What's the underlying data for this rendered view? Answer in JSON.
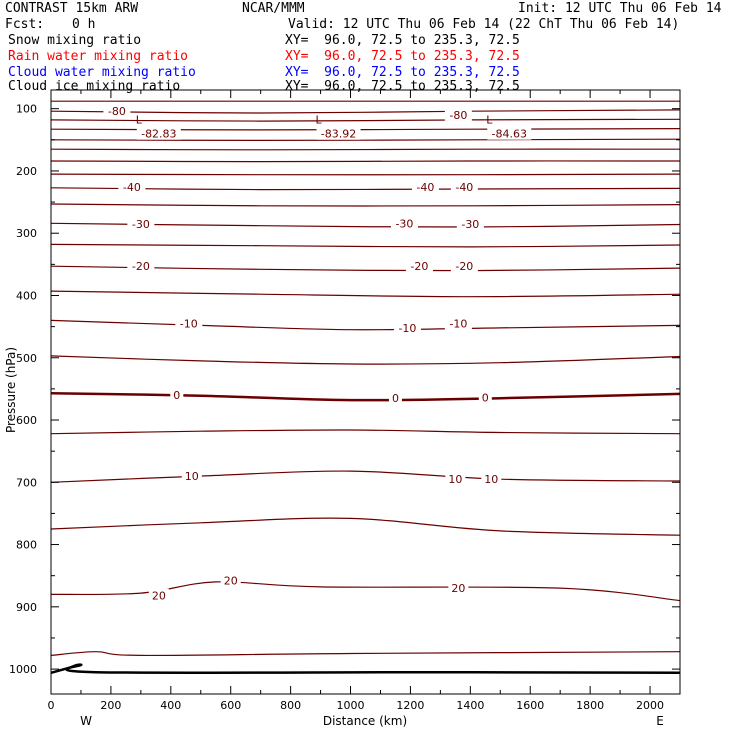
{
  "header": {
    "title": "CONTRAST 15km ARW",
    "center": "NCAR/MMM",
    "init": "Init: 12 UTC Thu 06 Feb 14",
    "fcst_label": "Fcst:",
    "fcst_value": "0 h",
    "valid": "Valid: 12 UTC Thu 06 Feb 14 (22 ChT Thu 06 Feb 14)"
  },
  "fields": [
    {
      "name": "Snow mixing ratio",
      "xy": "XY=  96.0, 72.5 to 235.3, 72.5",
      "color": "#000000"
    },
    {
      "name": "Rain water mixing ratio",
      "xy": "XY=  96.0, 72.5 to 235.3, 72.5",
      "color": "#ff0000"
    },
    {
      "name": "Cloud water mixing ratio",
      "xy": "XY=  96.0, 72.5 to 235.3, 72.5",
      "color": "#0000ff"
    },
    {
      "name": "Cloud ice mixing ratio",
      "xy": "XY=  96.0, 72.5 to 235.3, 72.5",
      "color": "#000000"
    }
  ],
  "chart_data": {
    "type": "line",
    "xlabel": "Distance (km)",
    "ylabel": "Pressure (hPa)",
    "xlim": [
      0,
      2100
    ],
    "ylim": [
      1040,
      70
    ],
    "x_ticks": [
      0,
      200,
      400,
      600,
      800,
      1000,
      1200,
      1400,
      1600,
      1800,
      2000
    ],
    "y_ticks": [
      100,
      200,
      300,
      400,
      500,
      600,
      700,
      800,
      900,
      1000
    ],
    "direction_left": "W",
    "direction_right": "E",
    "contour_color": "#6b0000",
    "isotherms": [
      {
        "p": [
          88,
          88
        ],
        "x": [
          0,
          2100
        ]
      },
      {
        "p": [
          104,
          107,
          104,
          102
        ],
        "x": [
          0,
          700,
          1400,
          2100
        ]
      },
      {
        "p": [
          118,
          120,
          118,
          117
        ],
        "x": [
          0,
          700,
          1400,
          2100
        ]
      },
      {
        "p": [
          133,
          134,
          133,
          132
        ],
        "x": [
          0,
          700,
          1400,
          2100
        ]
      },
      {
        "p": [
          150,
          151,
          150,
          149
        ],
        "x": [
          0,
          700,
          1400,
          2100
        ]
      },
      {
        "p": [
          165,
          166,
          165,
          165
        ],
        "x": [
          0,
          700,
          1400,
          2100
        ]
      },
      {
        "p": [
          184,
          185,
          184,
          184
        ],
        "x": [
          0,
          700,
          1400,
          2100
        ]
      },
      {
        "p": [
          205,
          206,
          206,
          205
        ],
        "x": [
          0,
          700,
          1400,
          2100
        ]
      },
      {
        "p": [
          227,
          230,
          229,
          228
        ],
        "x": [
          0,
          700,
          1400,
          2100
        ]
      },
      {
        "p": [
          253,
          256,
          256,
          254
        ],
        "x": [
          0,
          700,
          1400,
          2100
        ]
      },
      {
        "p": [
          284,
          288,
          290,
          286
        ],
        "x": [
          0,
          700,
          1400,
          2100
        ]
      },
      {
        "p": [
          318,
          320,
          322,
          319
        ],
        "x": [
          0,
          700,
          1400,
          2100
        ]
      },
      {
        "p": [
          353,
          358,
          360,
          356
        ],
        "x": [
          0,
          700,
          1400,
          2100
        ]
      },
      {
        "p": [
          393,
          398,
          402,
          398
        ],
        "x": [
          0,
          700,
          1400,
          2100
        ]
      },
      {
        "p": [
          440,
          448,
          455,
          452,
          448
        ],
        "x": [
          0,
          500,
          1000,
          1500,
          2100
        ]
      },
      {
        "p": [
          497,
          505,
          510,
          508,
          498
        ],
        "x": [
          0,
          500,
          1000,
          1500,
          2100
        ]
      },
      {
        "p": [
          557,
          561,
          568,
          565,
          558
        ],
        "x": [
          0,
          500,
          1000,
          1500,
          2100
        ]
      },
      {
        "p": [
          622,
          618,
          616,
          620,
          622
        ],
        "x": [
          0,
          500,
          1000,
          1500,
          2100
        ]
      },
      {
        "p": [
          700,
          690,
          682,
          695,
          698
        ],
        "x": [
          0,
          500,
          1000,
          1500,
          2100
        ]
      },
      {
        "p": [
          775,
          765,
          758,
          778,
          785
        ],
        "x": [
          0,
          500,
          1000,
          1500,
          2100
        ]
      },
      {
        "p": [
          880,
          878,
          860,
          868,
          870,
          890
        ],
        "x": [
          0,
          300,
          550,
          900,
          1700,
          2100
        ]
      },
      {
        "p": [
          978,
          972,
          978,
          975,
          972
        ],
        "x": [
          0,
          150,
          300,
          1000,
          2100
        ]
      }
    ],
    "zero_isotherm_index": 16,
    "ground": {
      "x": [
        0,
        60,
        100,
        150,
        1280,
        2100
      ],
      "p": [
        1006,
        998,
        993,
        1005,
        1005,
        1006
      ]
    },
    "contour_labels": [
      {
        "text": "-80",
        "x": 220,
        "p": 104
      },
      {
        "text": "-80",
        "x": 1360,
        "p": 110
      },
      {
        "text": "-40",
        "x": 270,
        "p": 226
      },
      {
        "text": "-40",
        "x": 1250,
        "p": 226
      },
      {
        "text": "-40",
        "x": 1380,
        "p": 226
      },
      {
        "text": "-30",
        "x": 300,
        "p": 285
      },
      {
        "text": "-30",
        "x": 1180,
        "p": 284
      },
      {
        "text": "-30",
        "x": 1400,
        "p": 285
      },
      {
        "text": "-20",
        "x": 300,
        "p": 353
      },
      {
        "text": "-20",
        "x": 1230,
        "p": 353
      },
      {
        "text": "-20",
        "x": 1380,
        "p": 353
      },
      {
        "text": "-10",
        "x": 460,
        "p": 445
      },
      {
        "text": "-10",
        "x": 1190,
        "p": 452
      },
      {
        "text": "-10",
        "x": 1360,
        "p": 445
      },
      {
        "text": "0",
        "x": 420,
        "p": 560
      },
      {
        "text": "0",
        "x": 1150,
        "p": 565
      },
      {
        "text": "0",
        "x": 1450,
        "p": 564
      },
      {
        "text": "10",
        "x": 470,
        "p": 690
      },
      {
        "text": "10",
        "x": 1350,
        "p": 695
      },
      {
        "text": "10",
        "x": 1470,
        "p": 695
      },
      {
        "text": "20",
        "x": 360,
        "p": 882
      },
      {
        "text": "20",
        "x": 600,
        "p": 858
      },
      {
        "text": "20",
        "x": 1360,
        "p": 870
      }
    ],
    "low_markers": [
      {
        "text": "L",
        "value": "-82.83",
        "x": 360,
        "p": 92
      },
      {
        "text": "L",
        "value": "-83.92",
        "x": 960,
        "p": 92
      },
      {
        "text": "L",
        "value": "-84.63",
        "x": 1530,
        "p": 92
      }
    ]
  }
}
